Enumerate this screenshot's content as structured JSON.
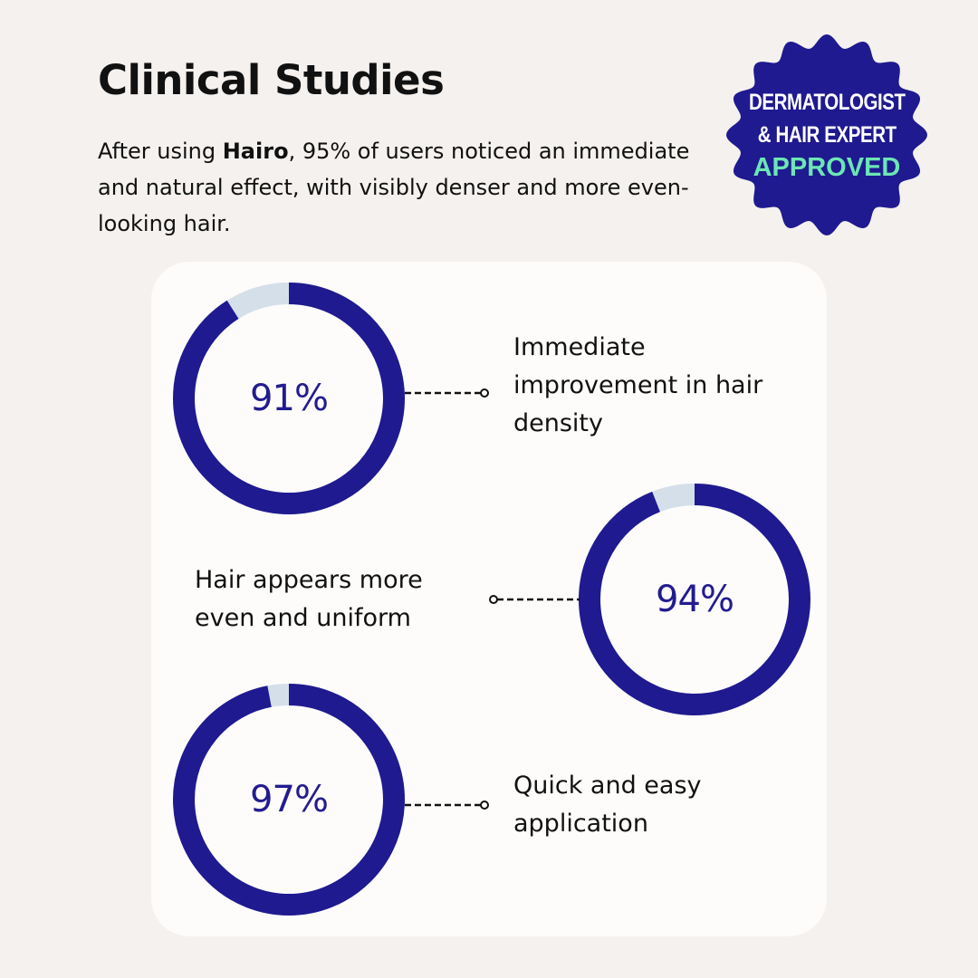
{
  "header": {
    "title": "Clinical Studies",
    "intro_before": "After using ",
    "brand": "Hairo",
    "intro_after": ", 95% of users noticed an immediate and natural effect, with visibly denser and more even-looking hair."
  },
  "badge": {
    "line1": "DERMATOLOGIST",
    "line2": "& HAIR EXPERT",
    "line3": "APPROVED"
  },
  "colors": {
    "primary": "#1f1a8f",
    "track": "#d5dfea",
    "badge_accent": "#6ce6b4",
    "background": "#f4f1ee",
    "card": "#fdfcfa"
  },
  "stats": [
    {
      "value": 91,
      "label": "91%",
      "text": "Immediate improvement in hair density"
    },
    {
      "value": 94,
      "label": "94%",
      "text": "Hair appears more even and uniform"
    },
    {
      "value": 97,
      "label": "97%",
      "text": "Quick and easy application"
    }
  ]
}
